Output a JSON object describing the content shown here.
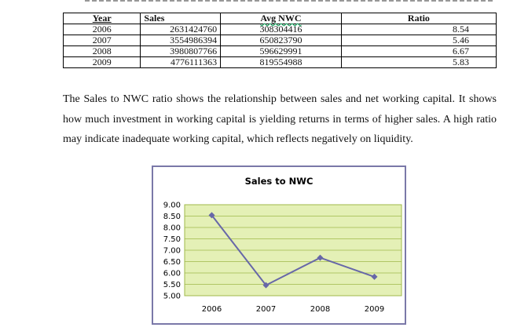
{
  "table": {
    "headers": [
      "Year",
      "Sales",
      "Avg NWC",
      "Ratio"
    ],
    "rows": [
      [
        "2006",
        "2631424760",
        "308304416",
        "8.54"
      ],
      [
        "2007",
        "3554986394",
        "650823790",
        "5.46"
      ],
      [
        "2008",
        "3980807766",
        "596629991",
        "6.67"
      ],
      [
        "2009",
        "4776111363",
        "819554988",
        "5.83"
      ]
    ]
  },
  "paragraph": "The Sales to NWC ratio shows the relationship between sales and net working capital. It shows how much investment in working capital is yielding returns in terms of higher sales. A high ratio may indicate inadequate working capital, which reflects negatively on liquidity.",
  "chart_data": {
    "type": "line",
    "title": "Sales to NWC",
    "categories": [
      "2006",
      "2007",
      "2008",
      "2009"
    ],
    "series": [
      {
        "values": [
          8.54,
          5.46,
          6.67,
          5.83
        ]
      }
    ],
    "ylim": [
      5.0,
      9.0
    ],
    "yticks": [
      "9.00",
      "8.50",
      "8.00",
      "7.50",
      "7.00",
      "6.50",
      "6.00",
      "5.50",
      "5.00"
    ],
    "grid": true,
    "legend": "none",
    "colors": {
      "line": "#6767a8",
      "marker": "#6767a8",
      "plot_bg": "#e4f0b6",
      "grid": "#9fb84a",
      "border": "#7a78a8"
    }
  }
}
